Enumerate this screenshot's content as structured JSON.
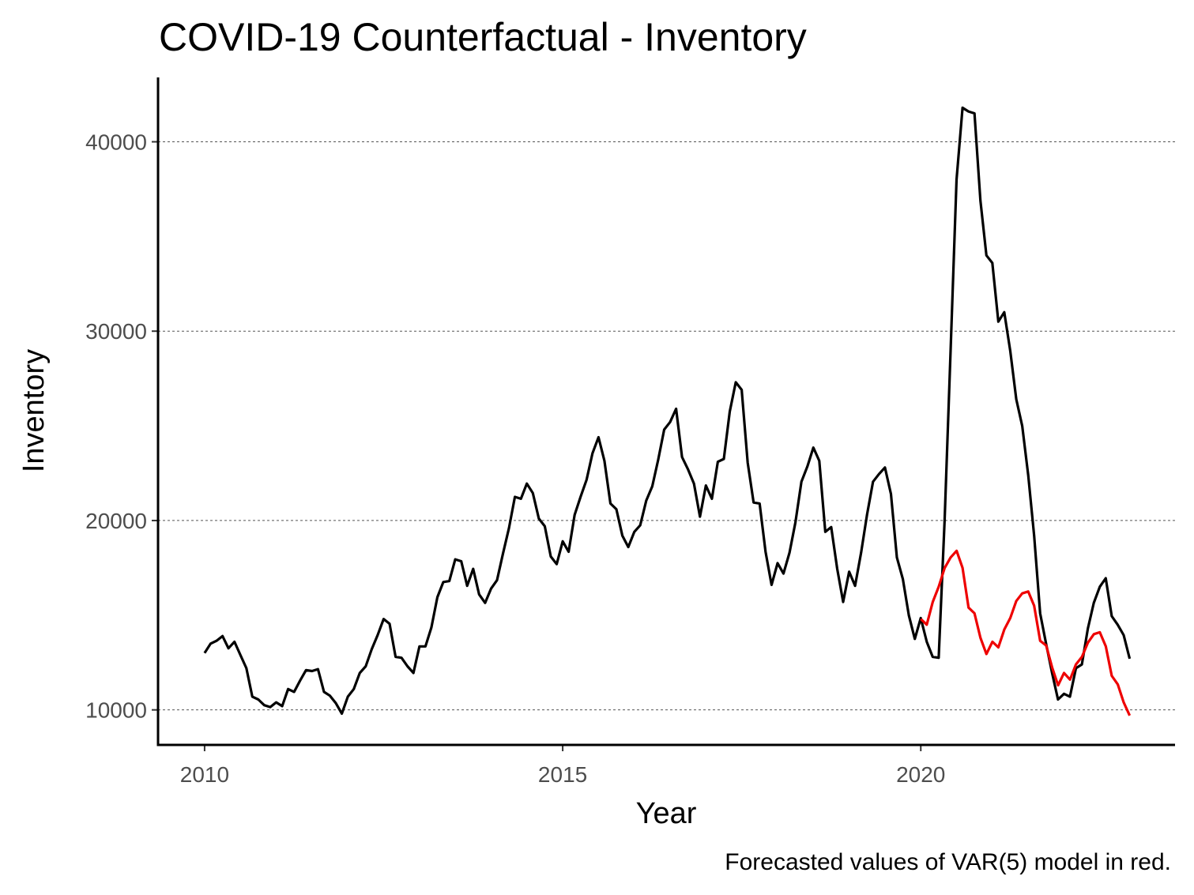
{
  "chart_data": {
    "type": "line",
    "title": "COVID-19 Counterfactual - Inventory",
    "xlabel": "Year",
    "ylabel": "Inventory",
    "caption": "Forecasted values of VAR(5) model in red.",
    "x_ticks": [
      2010,
      2015,
      2020
    ],
    "y_ticks": [
      10000,
      20000,
      30000,
      40000
    ],
    "xlim": [
      2009.35,
      2023.55
    ],
    "ylim": [
      8150,
      43400
    ],
    "grid": "horizontal dashed",
    "legend": "none",
    "series": [
      {
        "color": "#000000",
        "start": 2010.0,
        "step": 0.08333,
        "values": [
          13000,
          13500,
          13650,
          13900,
          13250,
          13600,
          12900,
          12200,
          10700,
          10550,
          10250,
          10150,
          10400,
          10200,
          11100,
          10950,
          11550,
          12100,
          12050,
          12150,
          10950,
          10750,
          10350,
          9800,
          10700,
          11100,
          11950,
          12300,
          13200,
          13950,
          14800,
          14550,
          12800,
          12750,
          12300,
          11950,
          13350,
          13350,
          14350,
          15950,
          16750,
          16800,
          17950,
          17850,
          16550,
          17450,
          16100,
          15650,
          16400,
          16850,
          18250,
          19600,
          21250,
          21150,
          21950,
          21450,
          20100,
          19700,
          18100,
          17700,
          18900,
          18350,
          20300,
          21250,
          22150,
          23550,
          24400,
          23150,
          20900,
          20600,
          19200,
          18600,
          19400,
          19750,
          21050,
          21800,
          23200,
          24800,
          25200,
          25900,
          23350,
          22700,
          21950,
          20200,
          21850,
          21150,
          23100,
          23250,
          25750,
          27300,
          26900,
          23050,
          20950,
          20900,
          18350,
          16600,
          17750,
          17200,
          18300,
          19900,
          22050,
          22850,
          23850,
          23150,
          19400,
          19650,
          17450,
          15700,
          17300,
          16550,
          18300,
          20300,
          22050,
          22450,
          22800,
          21400,
          18050,
          16900,
          15000,
          13750,
          14850,
          13600,
          12800,
          12750,
          20000,
          29000,
          38000,
          41800,
          41600,
          41500,
          36900,
          34000,
          33600,
          30500,
          31000,
          28950,
          26400,
          25000,
          22400,
          19200,
          15100,
          13500,
          11950,
          10550,
          10850,
          10700,
          12200,
          12400,
          14300,
          15650,
          16500,
          16950,
          14950,
          14500,
          13950,
          12700
        ]
      },
      {
        "color": "#ee0000",
        "start": 2020.0,
        "step": 0.08333,
        "values": [
          14800,
          14500,
          15700,
          16500,
          17500,
          18050,
          18400,
          17500,
          15400,
          15100,
          13800,
          12950,
          13600,
          13300,
          14250,
          14850,
          15750,
          16150,
          16250,
          15500,
          13650,
          13400,
          12250,
          11300,
          11950,
          11600,
          12400,
          12800,
          13550,
          14000,
          14100,
          13350,
          11800,
          11350,
          10400,
          9700
        ]
      }
    ]
  }
}
